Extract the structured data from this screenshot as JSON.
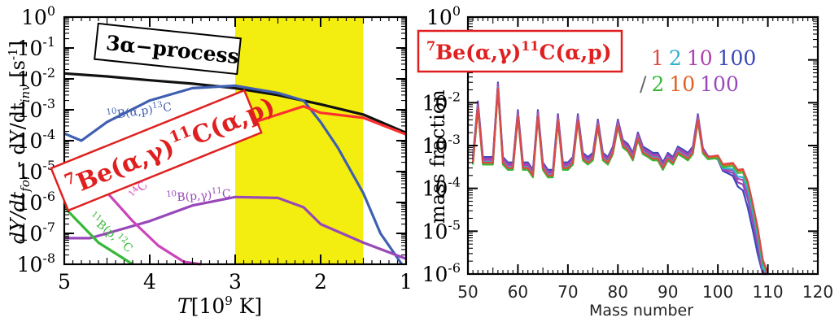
{
  "chart_data": [
    {
      "type": "line",
      "title": "",
      "xlabel": "T [10^9 K]",
      "xlabel_parts": {
        "var": "T",
        "unit": "[10",
        "exp": "9",
        "unit_tail": " K]"
      },
      "ylabel": "dY/dt_for - dY/dt_inv [s^-1]",
      "ylabel_parts": {
        "a": "dY/dt",
        "a_sub": "for",
        "mid": " - dY/dt",
        "b_sub": "inv",
        "unit": " [s",
        "unit_sup": "-1",
        "unit_tail": "]"
      },
      "xlim": [
        5,
        1
      ],
      "ylim": [
        1e-08,
        1
      ],
      "yscale": "log",
      "x_ticks": [
        5,
        4,
        3,
        2,
        1
      ],
      "y_ticks": [
        {
          "base": "10",
          "exp": "0",
          "value": 1
        },
        {
          "base": "10",
          "exp": "-1",
          "value": 0.1
        },
        {
          "base": "10",
          "exp": "-2",
          "value": 0.01
        },
        {
          "base": "10",
          "exp": "-3",
          "value": 0.001
        },
        {
          "base": "10",
          "exp": "-4",
          "value": 0.0001
        },
        {
          "base": "10",
          "exp": "-5",
          "value": 1e-05
        },
        {
          "base": "10",
          "exp": "-6",
          "value": 1e-06
        },
        {
          "base": "10",
          "exp": "-7",
          "value": 1e-07
        },
        {
          "base": "10",
          "exp": "-8",
          "value": 1e-08
        }
      ],
      "shaded_band": {
        "x": [
          3,
          1.5
        ],
        "color": "#f4ee10"
      },
      "series": [
        {
          "color": "#111111",
          "x": [
            5,
            4.5,
            4,
            3.5,
            3,
            2.5,
            2,
            1.5,
            1
          ],
          "y": [
            0.015,
            0.012,
            0.009,
            0.007,
            0.005,
            0.003,
            0.0015,
            0.0007,
            0.00018
          ]
        },
        {
          "color": "#3f5fb0",
          "x": [
            5,
            4.8,
            4.5,
            4,
            3.5,
            3,
            2.5,
            2.2,
            2,
            1.8,
            1.5,
            1.3,
            1.05
          ],
          "y": [
            0.00017,
            0.0001,
            0.0004,
            0.002,
            0.005,
            0.006,
            0.0035,
            0.002,
            0.0004,
            6e-05,
            2e-06,
            1e-07,
            1e-08
          ]
        },
        {
          "color": "#ff3030",
          "x": [
            4.2,
            4,
            3.5,
            3,
            2.5,
            2.2,
            2,
            1.5,
            1
          ],
          "y": [
            1e-05,
            3e-05,
            0.00012,
            0.00025,
            0.0007,
            0.0013,
            0.0008,
            0.00055,
            0.00016
          ]
        },
        {
          "color": "#9848b8",
          "x": [
            5,
            4.7,
            4.5,
            4,
            3.5,
            3,
            2.5,
            2.2,
            2,
            1.5,
            1
          ],
          "y": [
            7e-08,
            7e-08,
            1e-07,
            2.5e-07,
            8e-07,
            1.5e-06,
            1.4e-06,
            7e-07,
            2e-07,
            5e-08,
            1.5e-08
          ]
        },
        {
          "color": "#cc44bb",
          "x": [
            4.55,
            4.2,
            3.9,
            3.6,
            3.4
          ],
          "y": [
            3e-06,
            2.5e-07,
            4e-08,
            1.2e-08,
            6e-09
          ]
        },
        {
          "color": "#38b838",
          "x": [
            5,
            4.6,
            4.2
          ],
          "y": [
            7e-07,
            5e-08,
            5e-09
          ]
        }
      ],
      "annotations": [
        {
          "text": "3α−process",
          "boxed": true,
          "box_color": "#000000"
        },
        {
          "text": "7Be(α,γ)11C(α,p)",
          "parts": {
            "pre": "7",
            "a": "Be(α,γ)",
            "sup": "11",
            "b": "C(α,p)"
          },
          "boxed": true,
          "box_color": "#e02020",
          "text_color": "#e02020"
        },
        {
          "parts": {
            "pre": "10",
            "a": "B(α,p)",
            "sup": "13",
            "b": "C"
          },
          "color": "#3f5fb0"
        },
        {
          "parts": {
            "pre": "14",
            "a": "C"
          },
          "color": "#cc44bb"
        },
        {
          "parts": {
            "pre": "10",
            "a": "B(p,γ)",
            "sup": "11",
            "b": "C"
          },
          "color": "#9848b8"
        },
        {
          "parts": {
            "pre": "11",
            "a": "B(p,",
            "sup": "12",
            "b": "C"
          },
          "color": "#38b838"
        }
      ]
    },
    {
      "type": "line",
      "title": "",
      "xlabel": "Mass number",
      "ylabel": "mass fraction",
      "xlim": [
        50,
        120
      ],
      "ylim": [
        1e-06,
        1
      ],
      "yscale": "log",
      "x_ticks": [
        50,
        60,
        70,
        80,
        90,
        100,
        110,
        120
      ],
      "y_ticks": [
        {
          "base": "10",
          "exp": "0",
          "value": 1
        },
        {
          "base": "10",
          "exp": "-2",
          "value": 0.01
        },
        {
          "base": "10",
          "exp": "-3",
          "value": 0.001
        },
        {
          "base": "10",
          "exp": "-4",
          "value": 0.0001
        },
        {
          "base": "10",
          "exp": "-5",
          "value": 1e-05
        },
        {
          "base": "10",
          "exp": "-6",
          "value": 1e-06
        }
      ],
      "label_box": {
        "parts": {
          "pre": "7",
          "a": "Be(α,γ)",
          "sup": "11",
          "b": "C(α,p)"
        },
        "color": "#e02020"
      },
      "legend_row1": [
        {
          "text": "1",
          "color": "#e04848"
        },
        {
          "text": "2",
          "color": "#30b0d0"
        },
        {
          "text": "10",
          "color": "#b040b0"
        },
        {
          "text": "100",
          "color": "#3848b8"
        }
      ],
      "legend_row2": [
        {
          "text": "/",
          "color": "#666666"
        },
        {
          "text": "2",
          "color": "#38b838"
        },
        {
          "text": "10",
          "color": "#e06020"
        },
        {
          "text": "100",
          "color": "#9848b8"
        }
      ],
      "x": [
        51,
        52,
        53,
        54,
        55,
        56,
        57,
        58,
        59,
        60,
        61,
        62,
        63,
        64,
        65,
        66,
        67,
        68,
        69,
        70,
        71,
        72,
        73,
        74,
        75,
        76,
        77,
        78,
        79,
        80,
        81,
        82,
        83,
        84,
        85,
        86,
        87,
        88,
        89,
        90,
        91,
        92,
        93,
        94,
        95,
        96,
        97,
        98,
        99,
        100,
        101,
        102,
        103,
        104,
        105,
        106,
        107,
        108,
        109,
        110
      ],
      "base_values": [
        0.0004,
        0.008,
        0.0004,
        0.0004,
        0.0004,
        0.022,
        0.0004,
        0.0003,
        0.0003,
        0.005,
        0.0003,
        0.0003,
        0.0002,
        0.005,
        0.0003,
        0.0002,
        0.0002,
        0.004,
        0.0003,
        0.0003,
        0.0004,
        0.004,
        0.0005,
        0.0004,
        0.0005,
        0.003,
        0.0005,
        0.0004,
        0.0007,
        0.003,
        0.001,
        0.0008,
        0.0005,
        0.0015,
        0.0007,
        0.0006,
        0.0005,
        0.0005,
        0.0003,
        0.0005,
        0.0004,
        0.0007,
        0.0006,
        0.0005,
        0.0007,
        0.004,
        0.0007,
        0.0005,
        0.0005,
        0.0005,
        0.0003,
        0.0003,
        0.0003,
        0.0002,
        0.0002,
        0.0001,
        3e-05,
        8e-06,
        1.5e-06,
        5e-07
      ],
      "series": [
        {
          "color": "#3848b8",
          "factor": 1.35,
          "late_factor": 0.35
        },
        {
          "color": "#9848b8",
          "factor": 1.25,
          "late_factor": 0.55
        },
        {
          "color": "#b040b0",
          "factor": 1.15,
          "late_factor": 0.75
        },
        {
          "color": "#30b0d0",
          "factor": 1.05,
          "late_factor": 0.9
        },
        {
          "color": "#e06020",
          "factor": 0.95,
          "late_factor": 1.35
        },
        {
          "color": "#38b838",
          "factor": 0.9,
          "late_factor": 1.2
        },
        {
          "color": "#e04848",
          "factor": 1.0,
          "late_factor": 1.45
        }
      ]
    }
  ]
}
